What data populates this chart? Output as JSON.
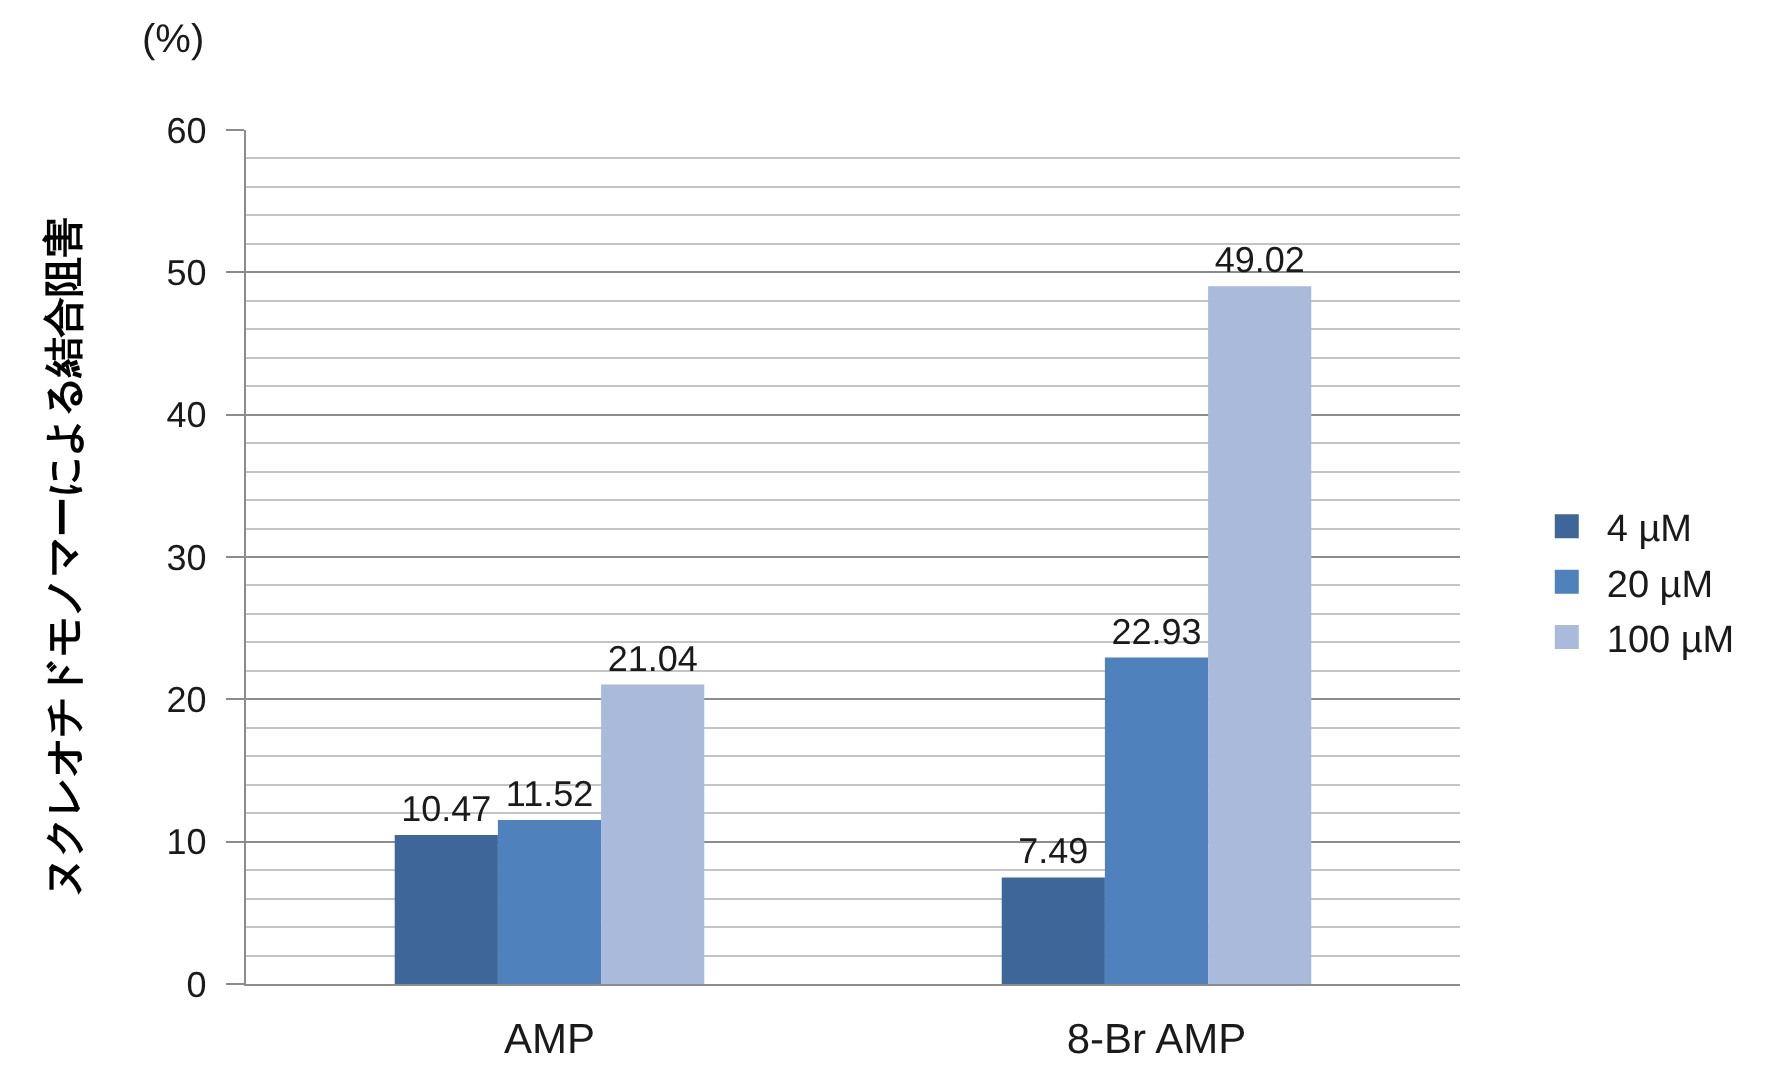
{
  "chart_data": {
    "type": "bar",
    "ylabel": "ヌクレオチドモノマーによる結合阻害",
    "annotations": [
      "(%)"
    ],
    "categories": [
      "AMP",
      "8-Br AMP"
    ],
    "series": [
      {
        "name": "4 µM",
        "color": "#3f6698",
        "values": [
          10.47,
          7.49
        ]
      },
      {
        "name": "20 µM",
        "color": "#4f81bd",
        "values": [
          11.52,
          22.93
        ]
      },
      {
        "name": "100 µM",
        "color": "#a9badb",
        "values": [
          21.04,
          49.02
        ]
      }
    ],
    "ylim": [
      0,
      60
    ],
    "yticks": [
      0,
      {
        "value": 2,
        "label": null
      },
      {
        "value": 4,
        "label": null
      },
      {
        "value": 6,
        "label": null
      },
      {
        "value": 8,
        "label": null
      },
      10,
      {
        "value": 12,
        "label": null
      },
      {
        "value": 14,
        "label": null
      },
      {
        "value": 16,
        "label": null
      },
      {
        "value": 18,
        "label": null
      },
      20,
      {
        "value": 22,
        "label": null
      },
      {
        "value": 24,
        "label": null
      },
      {
        "value": 26,
        "label": null
      },
      {
        "value": 28,
        "label": null
      },
      30,
      {
        "value": 32,
        "label": null
      },
      {
        "value": 34,
        "label": null
      },
      {
        "value": 36,
        "label": null
      },
      {
        "value": 38,
        "label": null
      },
      40,
      {
        "value": 42,
        "label": null
      },
      {
        "value": 44,
        "label": null
      },
      {
        "value": 46,
        "label": null
      },
      {
        "value": 48,
        "label": null
      },
      50,
      {
        "value": 52,
        "label": null
      },
      {
        "value": 54,
        "label": null
      },
      {
        "value": 56,
        "label": null
      },
      {
        "value": 58,
        "label": null
      },
      60
    ],
    "grid": "y",
    "legend": "right",
    "data_labels": true
  }
}
